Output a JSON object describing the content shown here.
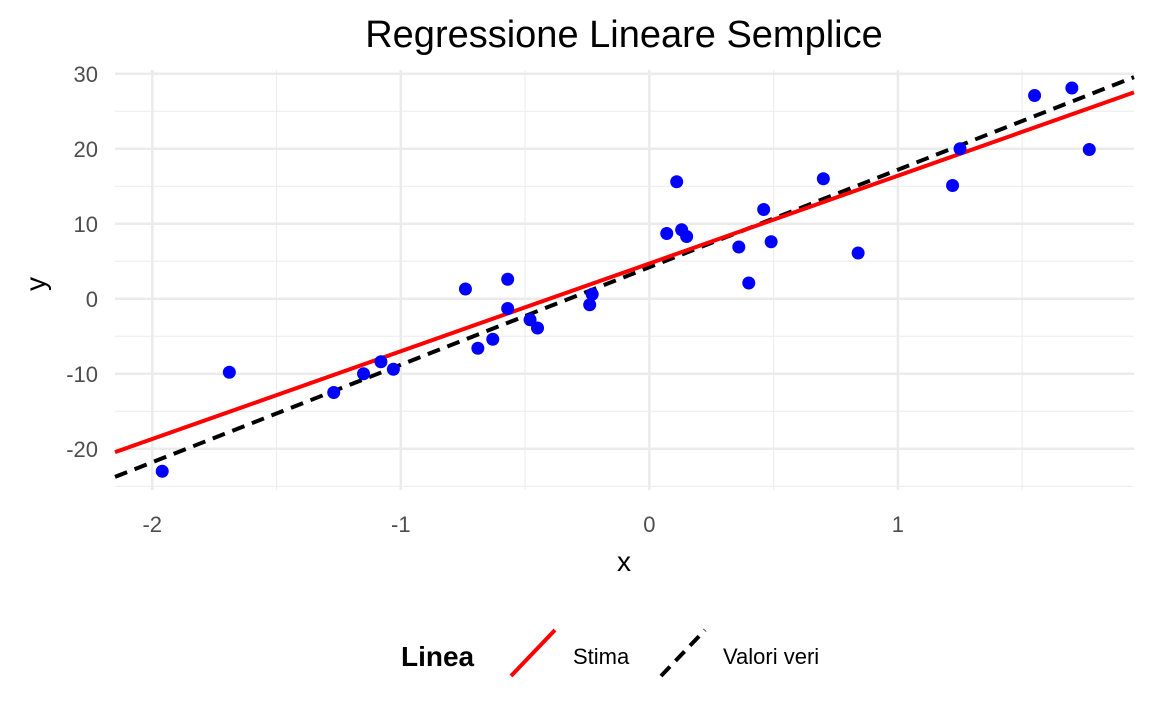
{
  "chart_data": {
    "type": "scatter",
    "title": "Regressione Lineare Semplice",
    "xlabel": "x",
    "ylabel": "y",
    "xlim": [
      -2.15,
      1.95
    ],
    "ylim": [
      -25.5,
      30.5
    ],
    "xticks": [
      -2,
      -1,
      0,
      1
    ],
    "yticks": [
      -20,
      -10,
      0,
      10,
      20,
      30
    ],
    "xtick_labels": [
      "-2",
      "-1",
      "0",
      "1"
    ],
    "ytick_labels": [
      "-20",
      "-10",
      "0",
      "10",
      "20",
      "30"
    ],
    "grid": true,
    "points": [
      {
        "x": -1.96,
        "y": -23.0
      },
      {
        "x": -1.69,
        "y": -9.8
      },
      {
        "x": -1.27,
        "y": -12.5
      },
      {
        "x": -1.15,
        "y": -10.0
      },
      {
        "x": -1.08,
        "y": -8.4
      },
      {
        "x": -1.03,
        "y": -9.4
      },
      {
        "x": -0.74,
        "y": 1.3
      },
      {
        "x": -0.69,
        "y": -6.6
      },
      {
        "x": -0.63,
        "y": -5.4
      },
      {
        "x": -0.57,
        "y": 2.6
      },
      {
        "x": -0.57,
        "y": -1.3
      },
      {
        "x": -0.48,
        "y": -2.8
      },
      {
        "x": -0.45,
        "y": -3.9
      },
      {
        "x": -0.24,
        "y": -0.8
      },
      {
        "x": -0.23,
        "y": 0.6
      },
      {
        "x": 0.07,
        "y": 8.7
      },
      {
        "x": 0.11,
        "y": 15.6
      },
      {
        "x": 0.13,
        "y": 9.2
      },
      {
        "x": 0.15,
        "y": 8.3
      },
      {
        "x": 0.36,
        "y": 6.9
      },
      {
        "x": 0.4,
        "y": 2.1
      },
      {
        "x": 0.46,
        "y": 11.9
      },
      {
        "x": 0.49,
        "y": 7.6
      },
      {
        "x": 0.7,
        "y": 16.0
      },
      {
        "x": 0.84,
        "y": 6.1
      },
      {
        "x": 1.22,
        "y": 15.1
      },
      {
        "x": 1.25,
        "y": 20.0
      },
      {
        "x": 1.55,
        "y": 27.1
      },
      {
        "x": 1.7,
        "y": 28.1
      },
      {
        "x": 1.77,
        "y": 19.9
      }
    ],
    "point_color": "#0000ff",
    "lines": [
      {
        "name": "Stima",
        "color": "#ff0000",
        "dash": "solid",
        "intercept": 4.7,
        "slope": 11.7
      },
      {
        "name": "Valori veri",
        "color": "#000000",
        "dash": "dashed",
        "intercept": 4.2,
        "slope": 13.0
      }
    ],
    "legend": {
      "title": "Linea",
      "position": "bottom",
      "entries": [
        "Stima",
        "Valori veri"
      ]
    }
  }
}
